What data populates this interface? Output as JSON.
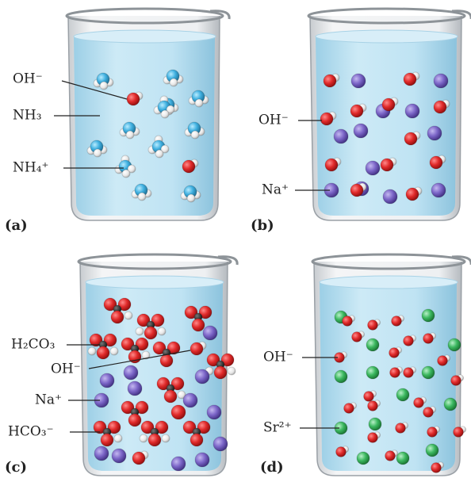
{
  "panels": [
    {
      "letter": "(a)",
      "labels": [
        "OH⁻",
        "NH₃",
        "NH₄⁺"
      ]
    },
    {
      "letter": "(b)",
      "labels": [
        "OH⁻",
        "Na⁺"
      ]
    },
    {
      "letter": "(c)",
      "labels": [
        "H₂CO₃",
        "OH⁻",
        "Na⁺",
        "HCO₃⁻"
      ]
    },
    {
      "letter": "(d)",
      "labels": [
        "OH⁻",
        "Sr²⁺"
      ]
    }
  ]
}
